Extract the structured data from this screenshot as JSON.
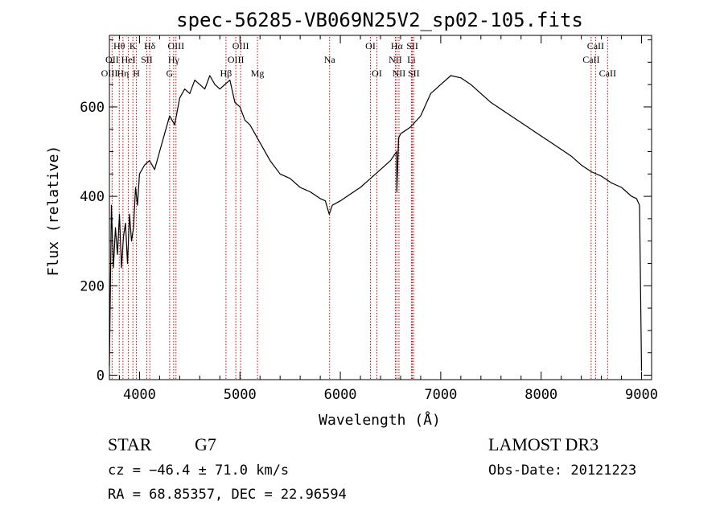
{
  "chart_data": {
    "type": "line",
    "title": "spec-56285-VB069N25V2_sp02-105.fits",
    "xlabel": "Wavelength (Å)",
    "ylabel": "Flux (relative)",
    "xlim": [
      3700,
      9100
    ],
    "ylim": [
      -10,
      760
    ],
    "x_ticks": [
      4000,
      5000,
      6000,
      7000,
      8000,
      9000
    ],
    "x_tick_labels": [
      "4000",
      "5000",
      "6000",
      "7000",
      "8000",
      "9000"
    ],
    "y_ticks": [
      0,
      200,
      400,
      600
    ],
    "y_tick_labels": [
      "0",
      "200",
      "400",
      "600"
    ],
    "line_color": "#000000",
    "marker_color": "#cc0000",
    "grid": false,
    "series": [
      {
        "name": "flux",
        "x": [
          3700,
          3720,
          3740,
          3760,
          3780,
          3800,
          3820,
          3840,
          3860,
          3880,
          3900,
          3920,
          3940,
          3960,
          3980,
          4000,
          4050,
          4100,
          4150,
          4200,
          4250,
          4300,
          4350,
          4400,
          4450,
          4500,
          4550,
          4600,
          4650,
          4700,
          4750,
          4800,
          4850,
          4900,
          4950,
          5000,
          5050,
          5100,
          5150,
          5200,
          5300,
          5400,
          5500,
          5600,
          5700,
          5800,
          5850,
          5890,
          5920,
          6000,
          6100,
          6200,
          6300,
          6400,
          6500,
          6560,
          6563,
          6580,
          6600,
          6700,
          6800,
          6900,
          7000,
          7100,
          7200,
          7300,
          7400,
          7500,
          7600,
          7700,
          7800,
          7900,
          8000,
          8100,
          8200,
          8300,
          8400,
          8500,
          8600,
          8700,
          8800,
          8850,
          8900,
          8950,
          8980,
          9000
        ],
        "values": [
          20,
          380,
          240,
          330,
          270,
          360,
          240,
          310,
          340,
          250,
          360,
          300,
          330,
          420,
          380,
          450,
          470,
          480,
          460,
          500,
          540,
          580,
          560,
          620,
          640,
          630,
          660,
          650,
          640,
          670,
          650,
          640,
          650,
          660,
          610,
          600,
          570,
          560,
          540,
          520,
          480,
          450,
          440,
          420,
          410,
          395,
          390,
          360,
          380,
          390,
          405,
          420,
          440,
          460,
          480,
          500,
          410,
          530,
          540,
          555,
          580,
          630,
          650,
          670,
          665,
          650,
          630,
          610,
          595,
          580,
          565,
          550,
          535,
          520,
          505,
          490,
          470,
          455,
          445,
          430,
          420,
          410,
          400,
          395,
          380,
          10
        ]
      }
    ],
    "lines": [
      {
        "label": "Hθ",
        "x": 3798,
        "row": 0
      },
      {
        "label": "OII",
        "x": 3727,
        "row": 1
      },
      {
        "label": "OIII",
        "x": 3700,
        "row": 2
      },
      {
        "label": "Hη",
        "x": 3835,
        "row": 2
      },
      {
        "label": "HeI",
        "x": 3889,
        "row": 1
      },
      {
        "label": "K",
        "x": 3934,
        "row": 0
      },
      {
        "label": "H",
        "x": 3969,
        "row": 2
      },
      {
        "label": "SII",
        "x": 4072,
        "row": 1
      },
      {
        "label": "Hδ",
        "x": 4102,
        "row": 0
      },
      {
        "label": "G",
        "x": 4300,
        "row": 2
      },
      {
        "label": "Hγ",
        "x": 4340,
        "row": 1
      },
      {
        "label": "OIII",
        "x": 4363,
        "row": 0
      },
      {
        "label": "Hβ",
        "x": 4861,
        "row": 2
      },
      {
        "label": "OIII",
        "x": 4959,
        "row": 1
      },
      {
        "label": "OIII",
        "x": 5007,
        "row": 0
      },
      {
        "label": "Mg",
        "x": 5175,
        "row": 2
      },
      {
        "label": "Na",
        "x": 5893,
        "row": 1
      },
      {
        "label": "OI",
        "x": 6300,
        "row": 0
      },
      {
        "label": "OI",
        "x": 6364,
        "row": 2
      },
      {
        "label": "NII",
        "x": 6548,
        "row": 1
      },
      {
        "label": "Hα",
        "x": 6563,
        "row": 0
      },
      {
        "label": "NII",
        "x": 6584,
        "row": 2
      },
      {
        "label": "Li",
        "x": 6708,
        "row": 1
      },
      {
        "label": "SII",
        "x": 6717,
        "row": 0
      },
      {
        "label": "SII",
        "x": 6731,
        "row": 2
      },
      {
        "label": "CaII",
        "x": 8498,
        "row": 1
      },
      {
        "label": "CaII",
        "x": 8542,
        "row": 0
      },
      {
        "label": "CaII",
        "x": 8662,
        "row": 2
      }
    ]
  },
  "info": {
    "class_label": "STAR",
    "subclass": "G7",
    "cz": "cz = −46.4 ± 71.0 km/s",
    "coords": "RA =  68.85357, DEC =  22.96594",
    "survey": "LAMOST DR3",
    "obs_date": "Obs-Date: 20121223"
  }
}
